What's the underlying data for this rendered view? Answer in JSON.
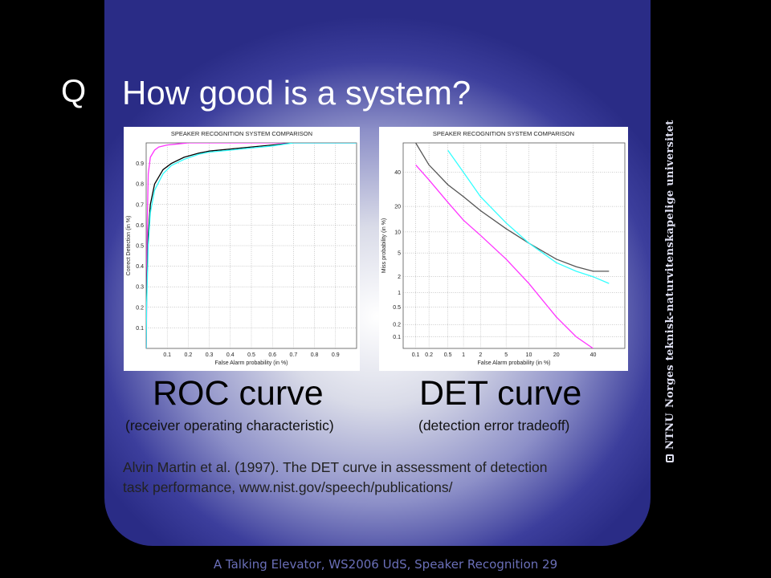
{
  "slide": {
    "marker": "Q",
    "title": "How good is a system?",
    "roc_caption": "ROC curve",
    "roc_subcaption": "(receiver operating characteristic)",
    "det_caption": "DET curve",
    "det_subcaption": "(detection error tradeoff)",
    "reference_line1": "Alvin Martin et al. (1997). The DET curve in assessment of detection",
    "reference_line2": "task performance, www.nist.gov/speech/publications/",
    "footer": "A Talking Elevator, WS2006 UdS, Speaker Recognition 29",
    "side_org_short": "NTNU",
    "side_org_full": "Norges teknisk-naturvitenskapelige universitet"
  },
  "chart_data": [
    {
      "type": "line",
      "title": "SPEAKER RECOGNITION SYSTEM COMPARISON",
      "xlabel": "False Alarm probability (in %)",
      "ylabel": "Correct Detection (in %)",
      "xlim": [
        0,
        1
      ],
      "ylim": [
        0,
        1
      ],
      "xticks": [
        "0.1",
        "0.2",
        "0.3",
        "0.4",
        "0.5",
        "0.6",
        "0.7",
        "0.8",
        "0.9"
      ],
      "yticks": [
        "0.1",
        "0.2",
        "0.3",
        "0.4",
        "0.5",
        "0.6",
        "0.7",
        "0.8",
        "0.9"
      ],
      "grid": true,
      "series": [
        {
          "color": "#ff33ff",
          "x": [
            0,
            0.001,
            0.005,
            0.01,
            0.02,
            0.04,
            0.06,
            0.1,
            0.15,
            0.2,
            0.3,
            0.4,
            1.0
          ],
          "y": [
            0,
            0.05,
            0.6,
            0.85,
            0.93,
            0.965,
            0.98,
            0.99,
            0.995,
            1,
            1,
            1,
            1
          ]
        },
        {
          "color": "#000000",
          "x": [
            0,
            0.002,
            0.01,
            0.02,
            0.04,
            0.08,
            0.12,
            0.18,
            0.25,
            0.3,
            0.4,
            0.5,
            0.6,
            0.7,
            1.0
          ],
          "y": [
            0,
            0.25,
            0.55,
            0.7,
            0.8,
            0.87,
            0.9,
            0.93,
            0.95,
            0.96,
            0.97,
            0.98,
            0.99,
            1,
            1
          ]
        },
        {
          "color": "#33ffff",
          "x": [
            0,
            0.002,
            0.01,
            0.02,
            0.04,
            0.08,
            0.12,
            0.18,
            0.25,
            0.3,
            0.4,
            0.5,
            0.6,
            0.7,
            1.0
          ],
          "y": [
            0,
            0.2,
            0.5,
            0.66,
            0.77,
            0.85,
            0.89,
            0.92,
            0.945,
            0.955,
            0.965,
            0.975,
            0.985,
            1,
            1
          ]
        }
      ]
    },
    {
      "type": "line",
      "title": "SPEAKER RECOGNITION SYSTEM COMPARISON",
      "xlabel": "False Alarm probability (in %)",
      "ylabel": "Miss probability (in %)",
      "xscale": "normal-deviate",
      "yscale": "normal-deviate",
      "xlim": [
        0.05,
        60
      ],
      "ylim": [
        0.05,
        60
      ],
      "xticks": [
        "0.1",
        "0.2",
        "0.5",
        "1",
        "2",
        "5",
        "10",
        "20",
        "40"
      ],
      "yticks": [
        "0.1",
        "0.2",
        "0.5",
        "1",
        "2",
        "5",
        "10",
        "20",
        "40"
      ],
      "grid": true,
      "series": [
        {
          "color": "#ff33ff",
          "x": [
            0.1,
            0.2,
            0.5,
            1,
            2,
            5,
            10,
            20,
            30,
            40
          ],
          "y": [
            45,
            35,
            22,
            14,
            9,
            4,
            1.5,
            0.3,
            0.1,
            0.05
          ]
        },
        {
          "color": "#555555",
          "x": [
            0.1,
            0.2,
            0.5,
            1,
            2,
            5,
            10,
            20,
            30,
            40,
            50
          ],
          "y": [
            60,
            45,
            32,
            25,
            18,
            11,
            7,
            4,
            3,
            2.5,
            2.5
          ]
        },
        {
          "color": "#33ffff",
          "x": [
            0.5,
            1,
            2,
            5,
            10,
            20,
            30,
            40,
            50
          ],
          "y": [
            55,
            40,
            25,
            13,
            7,
            3.5,
            2.5,
            2,
            1.5
          ]
        }
      ]
    }
  ]
}
